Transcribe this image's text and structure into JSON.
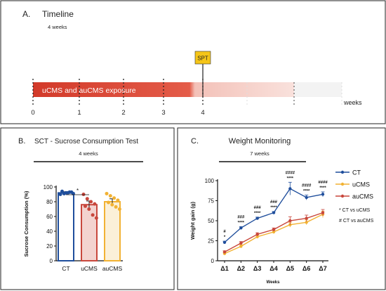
{
  "panel_a": {
    "letter": "A.",
    "title": "Timeline",
    "subtitle": "4 weeks",
    "bar_label": "uCMS and auCMS exposure",
    "spt_label": "SPT",
    "axis_label": "weeks",
    "ticks": [
      "0",
      "1",
      "2",
      "3",
      "4"
    ]
  },
  "panel_b": {
    "letter": "B.",
    "title": "SCT - Sucrose Consumption Test",
    "subtitle": "4 weeks",
    "significance": "*"
  },
  "panel_c": {
    "letter": "C.",
    "title": "Weight Monitoring",
    "subtitle": "7 weeks",
    "legend_notes": [
      "* CT vs uCMS",
      "# CT vs auCMS"
    ]
  },
  "colors": {
    "ct": "#1f4e9c",
    "ucms": "#f2b233",
    "aucms": "#c8473c",
    "timeline_red": "#d9432f",
    "spt_box": "#f5c518"
  },
  "chart_data": [
    {
      "type": "bar",
      "categories": [
        "CT",
        "uCMS",
        "auCMS"
      ],
      "values": [
        92,
        76,
        80
      ],
      "errors": [
        1.5,
        5,
        4
      ],
      "points": [
        [
          90,
          91,
          92,
          93,
          94,
          92,
          93,
          91
        ],
        [
          90,
          84,
          80,
          77,
          74,
          70,
          62,
          58
        ],
        [
          91,
          88,
          85,
          82,
          79,
          76,
          73,
          70
        ]
      ],
      "title": "SCT - Sucrose Consumption Test",
      "xlabel": "",
      "ylabel": "Sucrose Consumption (%)",
      "ylim": [
        0,
        100
      ],
      "yticks": [
        0,
        20,
        40,
        60,
        80,
        100
      ]
    },
    {
      "type": "line",
      "x": [
        "Δ1",
        "Δ2",
        "Δ3",
        "Δ4",
        "Δ5",
        "Δ6",
        "Δ7"
      ],
      "series": [
        {
          "name": "CT",
          "values": [
            23,
            41,
            53,
            60,
            90,
            79,
            83
          ],
          "errors": [
            1.5,
            1.5,
            1.5,
            1.5,
            8,
            3,
            3
          ]
        },
        {
          "name": "uCMS",
          "values": [
            9,
            18,
            30,
            36,
            45,
            48,
            58
          ],
          "errors": [
            1.5,
            2,
            2,
            2,
            3,
            3,
            4
          ]
        },
        {
          "name": "auCMS",
          "values": [
            11,
            22,
            33,
            39,
            50,
            53,
            60
          ],
          "errors": [
            1.5,
            2,
            2,
            2,
            5,
            4,
            4
          ]
        }
      ],
      "annotations": [
        [
          "#",
          "*"
        ],
        [
          "###",
          "****"
        ],
        [
          "###",
          "****"
        ],
        [
          "###",
          "****"
        ],
        [
          "####",
          "****"
        ],
        [
          "####",
          "****"
        ],
        [
          "####",
          "****"
        ]
      ],
      "title": "Weight Monitoring",
      "xlabel": "Weeks",
      "ylabel": "Weight gain (g)",
      "ylim": [
        0,
        100
      ],
      "yticks": [
        0,
        25,
        50,
        75,
        100
      ],
      "legend_position": "right"
    }
  ]
}
